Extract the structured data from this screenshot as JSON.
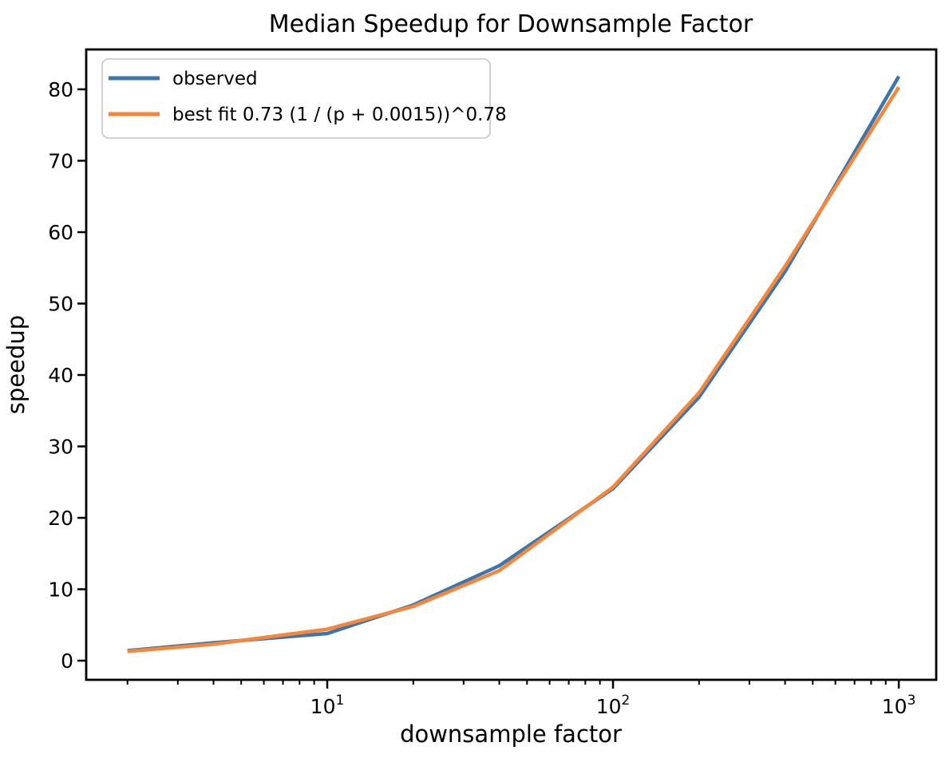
{
  "figure": {
    "title": "Median Speedup for Downsample Factor",
    "xlabel": "downsample factor",
    "ylabel": "speedup"
  },
  "chart_data": {
    "type": "line",
    "title": "Median Speedup for Downsample Factor",
    "xlabel": "downsample factor",
    "ylabel": "speedup",
    "x_scale": "log",
    "grid": false,
    "legend_position": "upper left",
    "x": [
      2,
      4,
      10,
      20,
      40,
      100,
      200,
      400,
      1000
    ],
    "series": [
      {
        "name": "observed",
        "color": "#3b76af",
        "values": [
          1.4,
          2.5,
          3.8,
          7.8,
          13.3,
          24.1,
          36.9,
          54.5,
          81.8
        ]
      },
      {
        "name": "best fit 0.73 (1 / (p + 0.0015))^0.78",
        "color": "#f5863a",
        "values": [
          1.3,
          2.3,
          4.4,
          7.6,
          12.6,
          24.3,
          37.5,
          55.2,
          80.3
        ]
      }
    ],
    "xlim": [
      1.434,
      1352
    ],
    "ylim": [
      -2.68,
      85.58
    ],
    "yticks": [
      0,
      10,
      20,
      30,
      40,
      50,
      60,
      70,
      80
    ],
    "xticks_major": [
      {
        "value": 10,
        "base": "10",
        "exp": "1"
      },
      {
        "value": 100,
        "base": "10",
        "exp": "2"
      },
      {
        "value": 1000,
        "base": "10",
        "exp": "3"
      }
    ],
    "xticks_minor": [
      2,
      3,
      4,
      5,
      6,
      7,
      8,
      9,
      20,
      30,
      40,
      50,
      60,
      70,
      80,
      90,
      200,
      300,
      400,
      500,
      600,
      700,
      800,
      900
    ]
  }
}
